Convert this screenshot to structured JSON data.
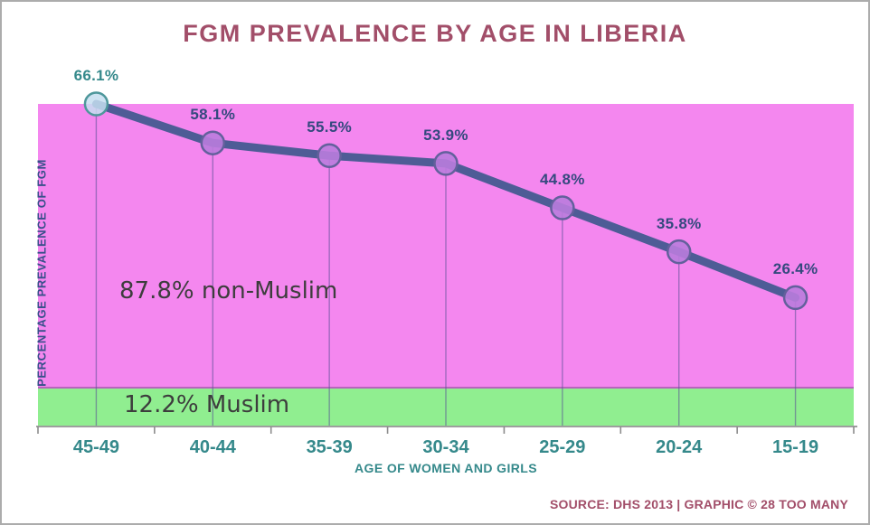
{
  "page": {
    "title": "FGM PREVALENCE BY AGE IN LIBERIA",
    "source_credit": "SOURCE: DHS 2013 | GRAPHIC © 28 TOO MANY"
  },
  "chart_data": {
    "type": "line",
    "title": "FGM PREVALENCE BY AGE IN LIBERIA",
    "categories": [
      "45-49",
      "40-44",
      "35-39",
      "30-34",
      "25-29",
      "20-24",
      "15-19"
    ],
    "values": [
      66.1,
      58.1,
      55.5,
      53.9,
      44.8,
      35.8,
      26.4
    ],
    "value_labels": [
      "66.1%",
      "58.1%",
      "55.5%",
      "53.9%",
      "44.8%",
      "35.8%",
      "26.4%"
    ],
    "xlabel": "AGE OF WOMEN AND GIRLS",
    "ylabel": "PERCENTAGE PREVALENCE OF FGM",
    "ylim": [
      0,
      66.1
    ],
    "grid": false,
    "legend": false,
    "bands": [
      {
        "name": "non-Muslim",
        "share_pct": 87.8,
        "color": "#f487ef"
      },
      {
        "name": "Muslim",
        "share_pct": 12.2,
        "color": "#90ee90"
      }
    ],
    "annotations": [
      {
        "text": "87.8% non-Muslim",
        "region": "non-Muslim band"
      },
      {
        "text": "12.2% Muslim",
        "region": "Muslim band"
      }
    ],
    "colors": {
      "title_maroon": "#a24e69",
      "axis_teal": "#35898b",
      "value_label_first": "#35898b",
      "value_label_rest": "#34497e",
      "line": "#4e5c96",
      "marker_fill": "#ba7cdd",
      "marker_stroke": "#63609c",
      "first_marker_fill": "#c5def0",
      "first_marker_stroke": "#4e979b",
      "band_pink": "#f487ef",
      "band_green": "#90ee90",
      "drop_line": "#5a5096",
      "axis_gray": "#9e9e9e"
    }
  }
}
